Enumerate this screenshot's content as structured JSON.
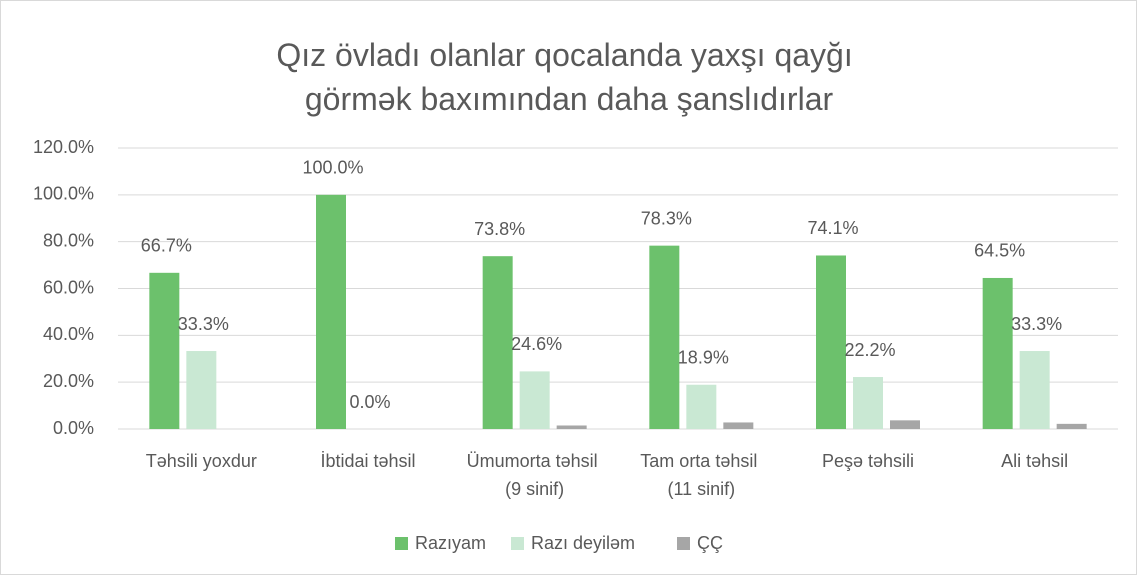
{
  "chart_data": {
    "type": "bar",
    "title": "Qız övladı olanlar qocalanda yaxşı qayğı görmək baxımından daha şanslıdırlar",
    "categories": [
      "Təhsili yoxdur",
      "İbtidai təhsil",
      "Ümumorta təhsil (9 sinif)",
      "Tam orta təhsil (11 sinif)",
      "Peşə təhsili",
      "Ali təhsil"
    ],
    "series": [
      {
        "name": "Razıyam",
        "color": "#6cc16c",
        "values": [
          66.7,
          100.0,
          73.8,
          78.3,
          74.1,
          64.5
        ],
        "value_labels": [
          "66.7%",
          "100.0%",
          "73.8%",
          "78.3%",
          "74.1%",
          "64.5%"
        ]
      },
      {
        "name": "Razı deyiləm",
        "color": "#c9e8d3",
        "values": [
          33.3,
          0.0,
          24.6,
          18.9,
          22.2,
          33.3
        ],
        "value_labels": [
          "33.3%",
          "0.0%",
          "24.6%",
          "18.9%",
          "22.2%",
          "33.3%"
        ]
      },
      {
        "name": "ÇÇ",
        "color": "#a6a6a6",
        "values": [
          0,
          0,
          1.5,
          2.8,
          3.7,
          2.2
        ]
      }
    ],
    "ylim": [
      0,
      120
    ],
    "yticks": [
      {
        "value": 0,
        "label": "0.0%"
      },
      {
        "value": 20,
        "label": "20.0%"
      },
      {
        "value": 40,
        "label": "40.0%"
      },
      {
        "value": 60,
        "label": "60.0%"
      },
      {
        "value": 80,
        "label": "80.0%"
      },
      {
        "value": 100,
        "label": "100.0%"
      },
      {
        "value": 120,
        "label": "120.0%"
      }
    ],
    "grid": true,
    "legend": "bottom"
  }
}
